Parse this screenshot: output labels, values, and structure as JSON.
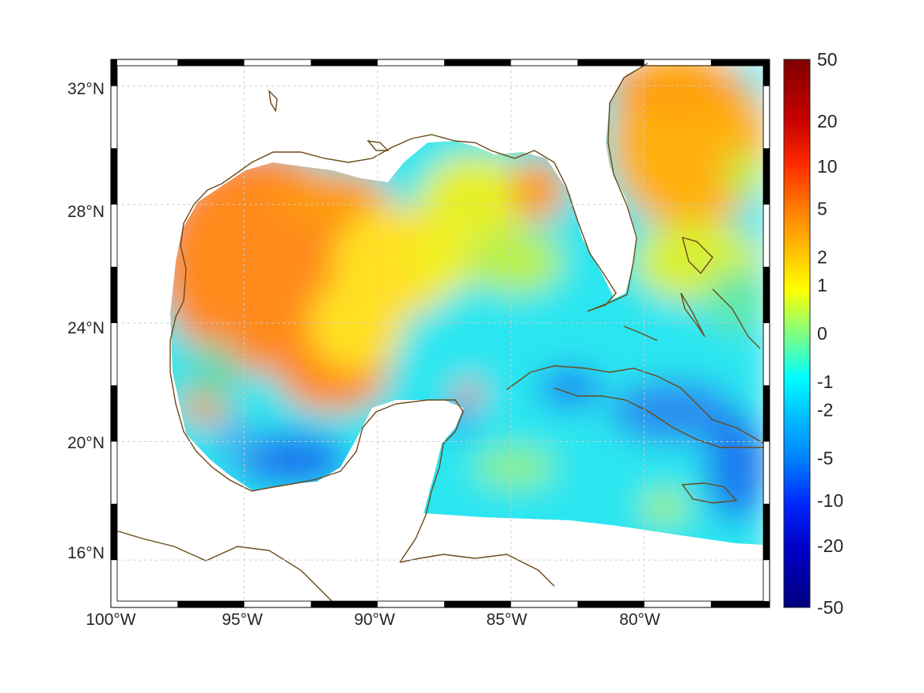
{
  "map": {
    "lon_labels": [
      "100°W",
      "95°W",
      "90°W",
      "85°W",
      "80°W"
    ],
    "lat_labels": [
      "32°N",
      "28°N",
      "24°N",
      "20°N",
      "16°N"
    ],
    "extent": {
      "lon_min": -100,
      "lon_max": -75.3,
      "lat_min": 14.4,
      "lat_max": 32.9
    },
    "graticule_lons": [
      -100,
      -95,
      -90,
      -85,
      -80
    ],
    "graticule_lats": [
      32,
      28,
      24,
      20,
      16
    ],
    "coast_color": "#6b4a1a",
    "land_color": "#ffffff",
    "colormap": "jet"
  },
  "colorbar": {
    "tick_labels": [
      "50",
      "20",
      "10",
      "5",
      "2",
      "1",
      "0",
      "-1",
      "-2",
      "-5",
      "-10",
      "-20",
      "-50"
    ],
    "scale": "symmetric-log",
    "min": -50,
    "max": 50
  }
}
